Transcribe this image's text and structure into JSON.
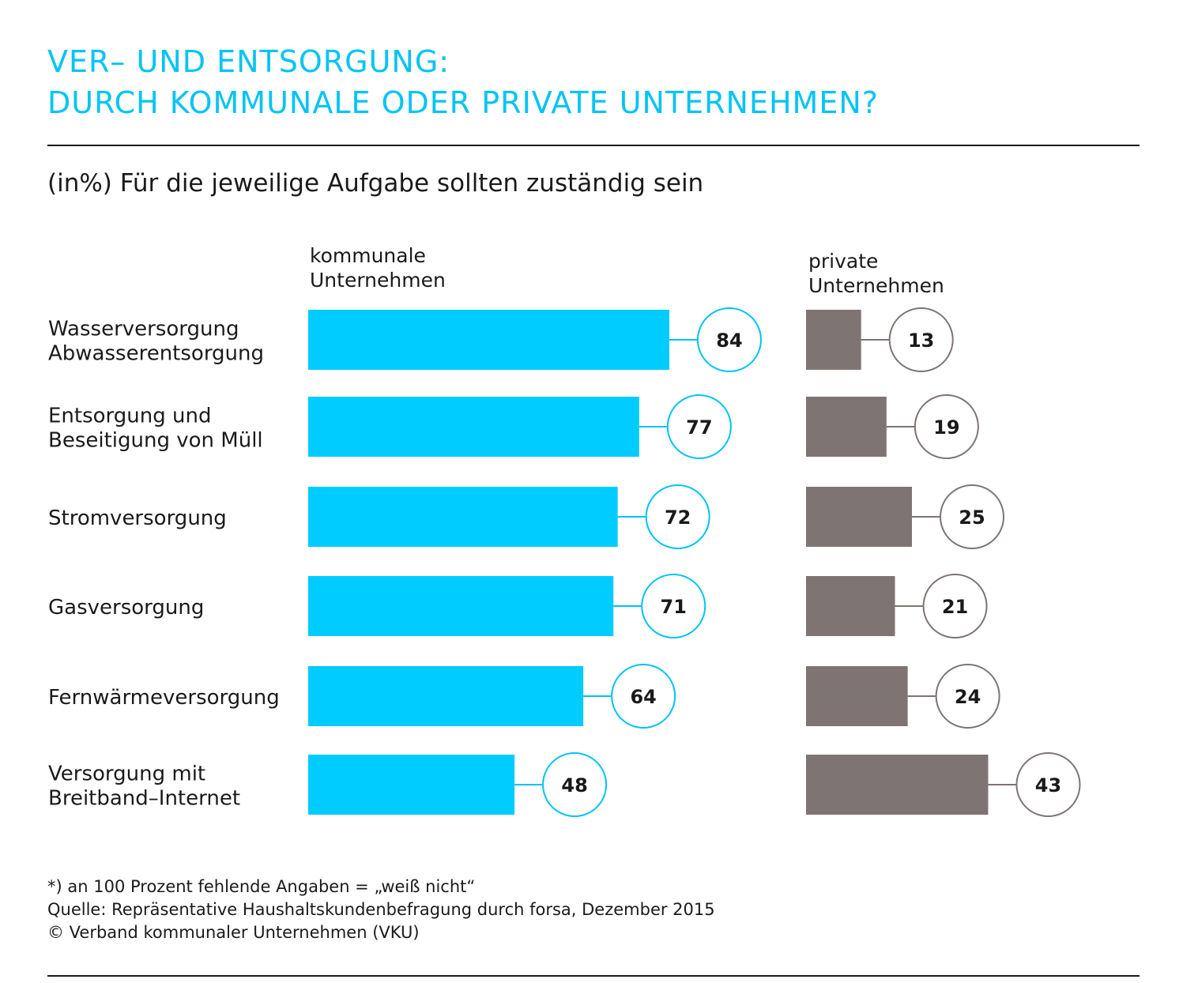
{
  "title_lines": [
    "VER– UND ENTSORGUNG:",
    "DURCH KOMMUNALE ODER PRIVATE UNTERNEHMEN?"
  ],
  "subtitle": "(in%) Für die jeweilige Aufgabe sollten zuständig sein",
  "chart_data": {
    "type": "bar",
    "orientation": "horizontal",
    "unit": "%",
    "categories": [
      [
        "Wasserversorgung",
        "Abwasserentsorgung"
      ],
      [
        "Entsorgung und",
        "Beseitigung von Müll"
      ],
      [
        "Stromversorgung"
      ],
      [
        "Gasversorgung"
      ],
      [
        "Fernwärmeversorgung"
      ],
      [
        "Versorgung mit",
        "Breitband–Internet"
      ]
    ],
    "series": [
      {
        "name": [
          "kommunale",
          "Unternehmen"
        ],
        "values": [
          84,
          77,
          72,
          71,
          64,
          48
        ],
        "color": "#00ccff"
      },
      {
        "name": [
          "private",
          "Unternehmen"
        ],
        "values": [
          13,
          19,
          25,
          21,
          24,
          43
        ],
        "color": "#7f7474"
      }
    ],
    "grid": false,
    "data_labels": "circles"
  },
  "footer": {
    "note": "*) an 100 Prozent fehlende Angaben = „weiß nicht“",
    "source": "Quelle: Repräsentative Haushaltskundenbefragung durch forsa, Dezember 2015",
    "copyright": "© Verband kommunaler Unternehmen (VKU)"
  }
}
